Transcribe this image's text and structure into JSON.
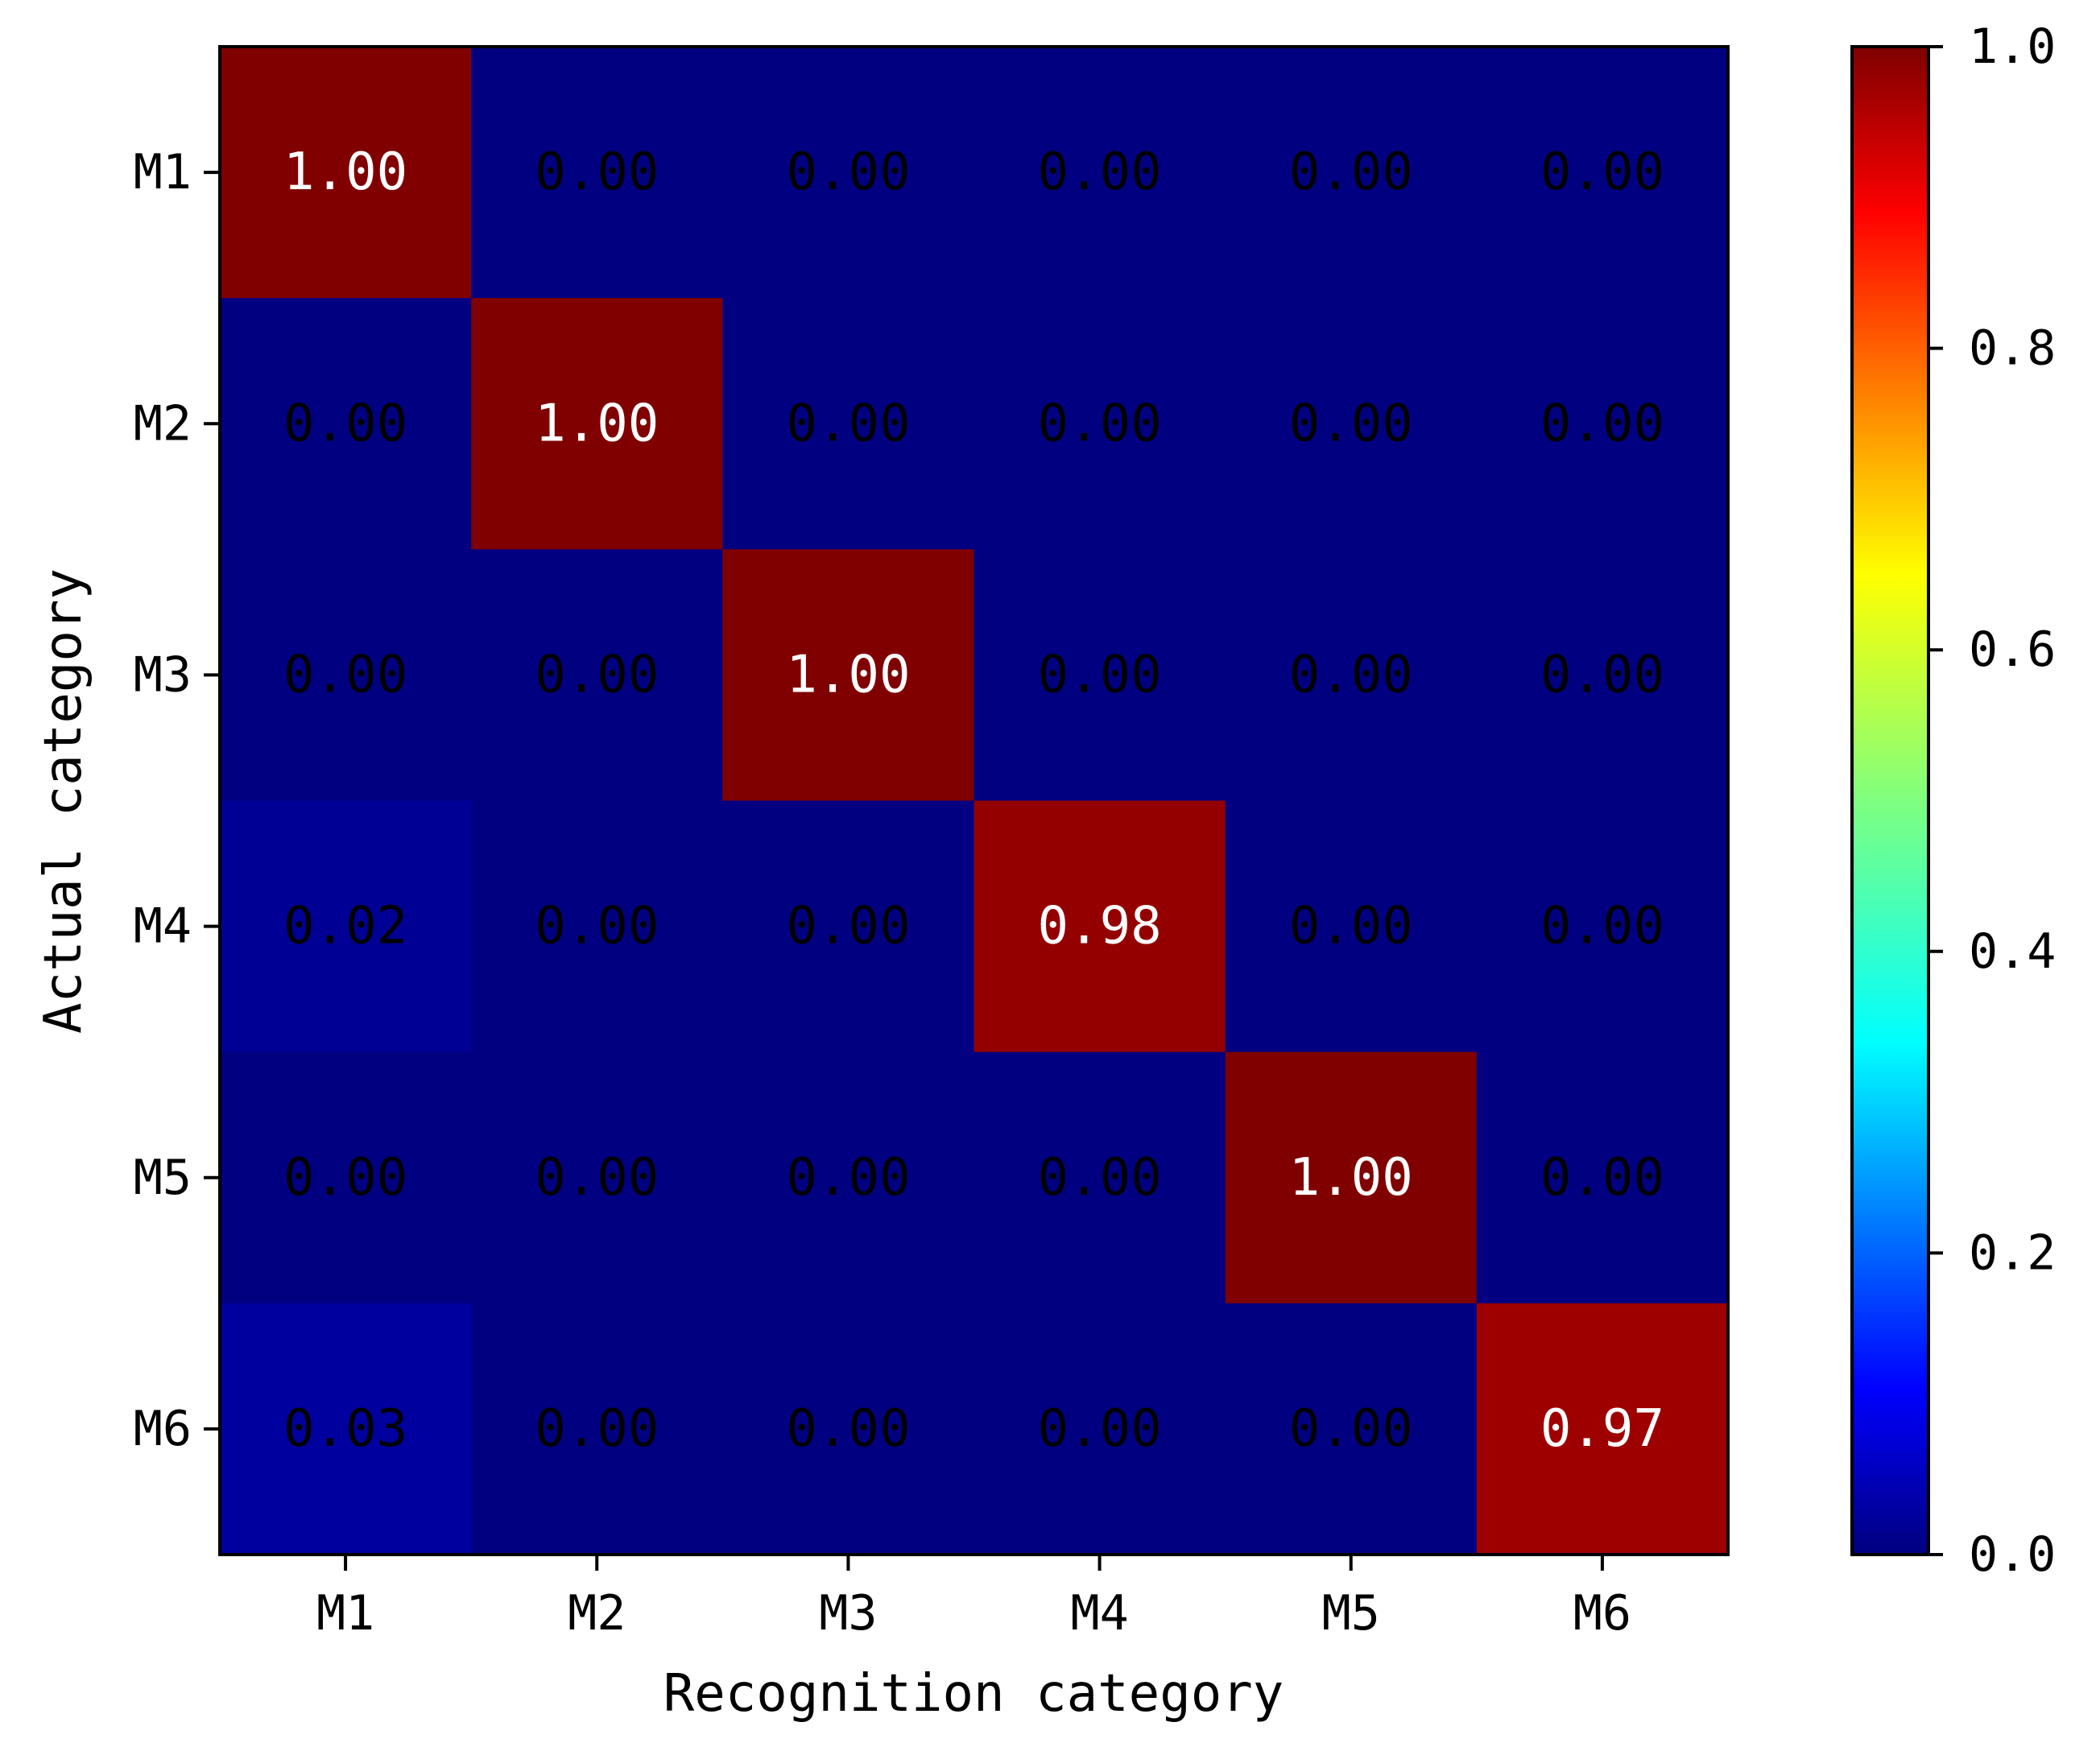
{
  "chart_data": {
    "type": "heatmap",
    "title": "",
    "xlabel": "Recognition category",
    "ylabel": "Actual category",
    "x_categories": [
      "M1",
      "M2",
      "M3",
      "M4",
      "M5",
      "M6"
    ],
    "y_categories": [
      "M1",
      "M2",
      "M3",
      "M4",
      "M5",
      "M6"
    ],
    "values": [
      [
        1.0,
        0.0,
        0.0,
        0.0,
        0.0,
        0.0
      ],
      [
        0.0,
        1.0,
        0.0,
        0.0,
        0.0,
        0.0
      ],
      [
        0.0,
        0.0,
        1.0,
        0.0,
        0.0,
        0.0
      ],
      [
        0.02,
        0.0,
        0.0,
        0.98,
        0.0,
        0.0
      ],
      [
        0.0,
        0.0,
        0.0,
        0.0,
        1.0,
        0.0
      ],
      [
        0.03,
        0.0,
        0.0,
        0.0,
        0.0,
        0.97
      ]
    ],
    "cell_labels": [
      [
        "1.00",
        "0.00",
        "0.00",
        "0.00",
        "0.00",
        "0.00"
      ],
      [
        "0.00",
        "1.00",
        "0.00",
        "0.00",
        "0.00",
        "0.00"
      ],
      [
        "0.00",
        "0.00",
        "1.00",
        "0.00",
        "0.00",
        "0.00"
      ],
      [
        "0.02",
        "0.00",
        "0.00",
        "0.98",
        "0.00",
        "0.00"
      ],
      [
        "0.00",
        "0.00",
        "0.00",
        "0.00",
        "1.00",
        "0.00"
      ],
      [
        "0.03",
        "0.00",
        "0.00",
        "0.00",
        "0.00",
        "0.97"
      ]
    ],
    "colormap": "jet",
    "colorbar": {
      "range": [
        0.0,
        1.0
      ],
      "ticks": [
        0.0,
        0.2,
        0.4,
        0.6,
        0.8,
        1.0
      ],
      "tick_labels": [
        "0.0",
        "0.2",
        "0.4",
        "0.6",
        "0.8",
        "1.0"
      ],
      "placement": "right"
    },
    "annotation_colors": {
      "dark_text": "#000000",
      "light_text": "#ffffff"
    }
  }
}
